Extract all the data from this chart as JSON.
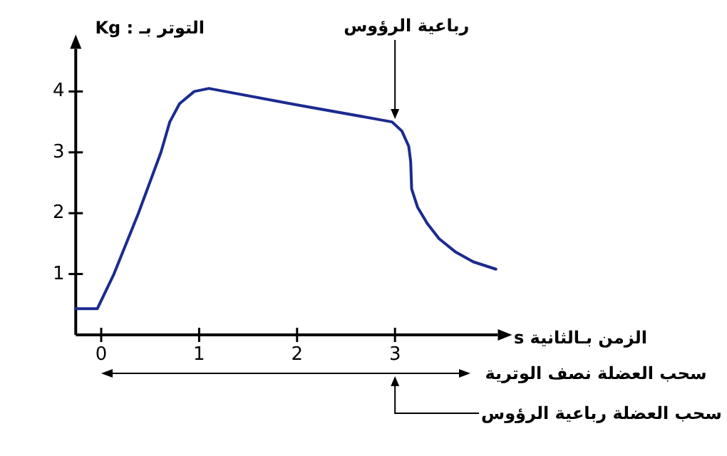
{
  "chart_data": {
    "type": "line",
    "ylabel": "التوتر بـ : Kg",
    "xlabel": "الزمن بـالثانية s",
    "x": [
      -0.26,
      -0.04,
      0.13,
      0.38,
      0.61,
      0.7,
      0.8,
      0.95,
      1.1,
      2.0,
      2.97,
      3.07,
      3.14,
      3.16,
      3.17,
      3.23,
      3.33,
      3.45,
      3.62,
      3.8,
      4.03
    ],
    "values": [
      0.43,
      0.43,
      1.0,
      2.0,
      3.0,
      3.5,
      3.8,
      4.0,
      4.05,
      3.78,
      3.5,
      3.35,
      3.1,
      2.85,
      2.4,
      2.1,
      1.83,
      1.58,
      1.36,
      1.2,
      1.08
    ],
    "color": "#1c2b8f",
    "line_style": "solid",
    "xlim": [
      -0.26,
      4.05
    ],
    "ylim": [
      0,
      4.7
    ],
    "xticks": [
      0,
      1,
      2,
      3
    ],
    "yticks": [
      1,
      2,
      3,
      4
    ],
    "annotations": [
      {
        "text": "رباعية الرؤوس",
        "x": 3,
        "y": 3.5
      },
      "سحب العضلة نصف الوترية",
      "سحب العضلة رباعية الرؤوس"
    ]
  }
}
